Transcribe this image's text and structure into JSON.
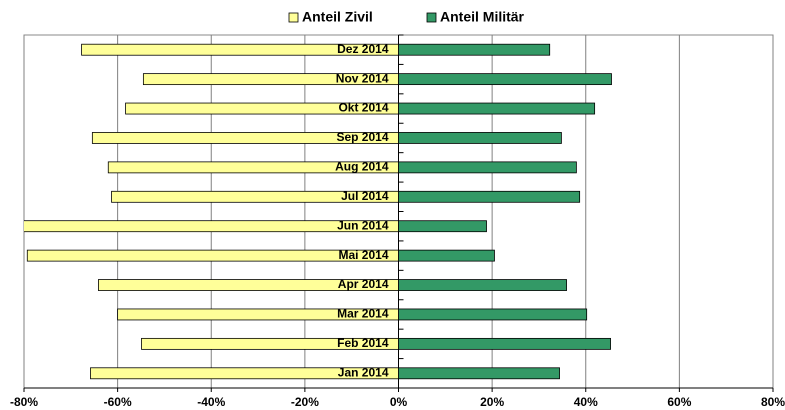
{
  "chart_data": {
    "type": "bar",
    "orientation": "horizontal",
    "categories": [
      "Jan 2014",
      "Feb 2014",
      "Mar 2014",
      "Apr 2014",
      "Mai 2014",
      "Jun 2014",
      "Jul 2014",
      "Aug 2014",
      "Sep 2014",
      "Okt 2014",
      "Nov 2014",
      "Dez 2014"
    ],
    "series": [
      {
        "name": "Anteil Zivil",
        "color": "#ffff99",
        "values": [
          -65.8,
          -54.9,
          -60,
          -64.1,
          -79.3,
          -80.5,
          -61.3,
          -62,
          -65.4,
          -58.3,
          -54.5,
          -67.7
        ]
      },
      {
        "name": "Anteil Militär",
        "color": "#339966",
        "values": [
          34.4,
          45.3,
          40.2,
          35.9,
          20.5,
          18.8,
          38.7,
          38,
          34.8,
          41.9,
          45.5,
          32.3
        ]
      }
    ],
    "xlim": [
      -80,
      80
    ],
    "xticks": [
      {
        "value": -80,
        "label": "-80%"
      },
      {
        "value": -60,
        "label": "-60%"
      },
      {
        "value": -40,
        "label": "-40%"
      },
      {
        "value": -20,
        "label": "-20%"
      },
      {
        "value": 0,
        "label": "0%"
      },
      {
        "value": 20,
        "label": "20%"
      },
      {
        "value": 40,
        "label": "40%"
      },
      {
        "value": 60,
        "label": "60%"
      },
      {
        "value": 80,
        "label": "80%"
      }
    ],
    "grid": true,
    "legend": "top"
  }
}
